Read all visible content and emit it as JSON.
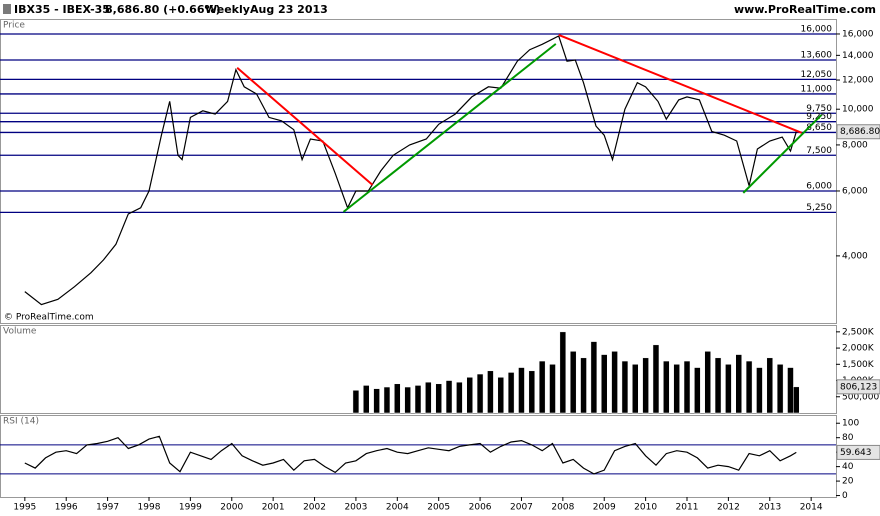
{
  "header": {
    "symbol": "IBX35 - IBEX-35",
    "quote": "8,686.80 (+0.66%)",
    "period": "Weekly",
    "date": "Aug 23 2013",
    "site": "www.ProRealTime.com"
  },
  "chart_data": [
    {
      "type": "line",
      "title": "Price",
      "annotation": "© ProRealTime.com",
      "log_scale": true,
      "color": "#000000",
      "xlim": [
        1994.4,
        2014.6
      ],
      "ylim": [
        2630,
        17460
      ],
      "yticks": [
        {
          "value": 4000,
          "label": "4,000"
        },
        {
          "value": 6000,
          "label": "6,000"
        },
        {
          "value": 8000,
          "label": "8,000"
        },
        {
          "value": 10000,
          "label": "10,000"
        },
        {
          "value": 12000,
          "label": "12,000"
        },
        {
          "value": 14000,
          "label": "14,000"
        },
        {
          "value": 16000,
          "label": "16,000"
        }
      ],
      "x": [
        1995.0,
        1995.4,
        1995.8,
        1996.2,
        1996.6,
        1996.9,
        1997.2,
        1997.5,
        1997.8,
        1998.0,
        1998.3,
        1998.5,
        1998.7,
        1998.8,
        1999.0,
        1999.3,
        1999.6,
        1999.9,
        2000.1,
        2000.3,
        2000.6,
        2000.9,
        2001.2,
        2001.5,
        2001.7,
        2001.9,
        2002.2,
        2002.5,
        2002.8,
        2003.0,
        2003.3,
        2003.6,
        2003.9,
        2004.3,
        2004.7,
        2005.0,
        2005.4,
        2005.8,
        2006.2,
        2006.5,
        2006.9,
        2007.2,
        2007.5,
        2007.9,
        2008.1,
        2008.3,
        2008.5,
        2008.8,
        2009.0,
        2009.2,
        2009.5,
        2009.8,
        2010.0,
        2010.3,
        2010.5,
        2010.8,
        2011.0,
        2011.3,
        2011.6,
        2011.9,
        2012.2,
        2012.5,
        2012.7,
        2013.0,
        2013.3,
        2013.5,
        2013.64
      ],
      "values": [
        3200,
        2950,
        3050,
        3300,
        3600,
        3900,
        4300,
        5200,
        5400,
        6000,
        8500,
        10500,
        7500,
        7300,
        9500,
        9900,
        9700,
        10500,
        12800,
        11500,
        11000,
        9500,
        9300,
        8800,
        7300,
        8300,
        8200,
        6700,
        5400,
        6000,
        6000,
        6800,
        7500,
        8000,
        8300,
        9100,
        9700,
        10800,
        11500,
        11400,
        13500,
        14500,
        15000,
        15800,
        13500,
        13600,
        11800,
        9000,
        8500,
        7300,
        10000,
        11800,
        11500,
        10500,
        9400,
        10600,
        10800,
        10600,
        8700,
        8500,
        8200,
        6200,
        7800,
        8200,
        8400,
        7700,
        8686.8
      ],
      "last_value": {
        "value": 8686.8,
        "label": "8,686.80"
      },
      "levels": [
        {
          "value": 16000,
          "label": "16,000"
        },
        {
          "value": 13600,
          "label": "13,600"
        },
        {
          "value": 12050,
          "label": "12,050"
        },
        {
          "value": 11000,
          "label": "11,000"
        },
        {
          "value": 9750,
          "label": "9,750"
        },
        {
          "value": 9250,
          "label": "9,250"
        },
        {
          "value": 8650,
          "label": "8,650"
        },
        {
          "value": 7500,
          "label": "7,500"
        },
        {
          "value": 6000,
          "label": "6,000"
        },
        {
          "value": 5250,
          "label": "5,250"
        }
      ],
      "level_color": "#000080",
      "trendlines": [
        {
          "color": "#ff0000",
          "x": [
            2000.13,
            2003.4
          ],
          "values": [
            12960,
            6235
          ]
        },
        {
          "color": "#009900",
          "x": [
            2002.7,
            2007.83
          ],
          "values": [
            5266,
            15040
          ]
        },
        {
          "color": "#ff0000",
          "x": [
            2007.9,
            2013.77
          ],
          "values": [
            15900,
            8630
          ]
        },
        {
          "color": "#009900",
          "x": [
            2012.36,
            2014.25
          ],
          "values": [
            5930,
            9650
          ]
        }
      ]
    },
    {
      "type": "bar",
      "title": "Volume",
      "color": "#000000",
      "xlim": [
        1994.4,
        2014.6
      ],
      "ylim": [
        0,
        2680000
      ],
      "yticks": [
        {
          "value": 500000,
          "label": "500,000"
        },
        {
          "value": 1000000,
          "label": "1,000K"
        },
        {
          "value": 1500000,
          "label": "1,500K"
        },
        {
          "value": 2000000,
          "label": "2,000K"
        },
        {
          "value": 2500000,
          "label": "2,500K"
        }
      ],
      "x": [
        2003.0,
        2003.25,
        2003.5,
        2003.75,
        2004.0,
        2004.25,
        2004.5,
        2004.75,
        2005.0,
        2005.25,
        2005.5,
        2005.75,
        2006.0,
        2006.25,
        2006.5,
        2006.75,
        2007.0,
        2007.25,
        2007.5,
        2007.75,
        2008.0,
        2008.25,
        2008.5,
        2008.75,
        2009.0,
        2009.25,
        2009.5,
        2009.75,
        2010.0,
        2010.25,
        2010.5,
        2010.75,
        2011.0,
        2011.25,
        2011.5,
        2011.75,
        2012.0,
        2012.25,
        2012.5,
        2012.75,
        2013.0,
        2013.25,
        2013.5,
        2013.64
      ],
      "values": [
        700000,
        850000,
        750000,
        800000,
        900000,
        800000,
        850000,
        950000,
        900000,
        1000000,
        950000,
        1100000,
        1200000,
        1300000,
        1100000,
        1250000,
        1400000,
        1300000,
        1600000,
        1500000,
        2500000,
        1900000,
        1700000,
        2200000,
        1800000,
        1900000,
        1600000,
        1500000,
        1700000,
        2100000,
        1600000,
        1500000,
        1600000,
        1400000,
        1900000,
        1700000,
        1500000,
        1800000,
        1600000,
        1400000,
        1700000,
        1500000,
        1400000,
        806123
      ],
      "last_value": {
        "value": 806123,
        "label": "806,123"
      }
    },
    {
      "type": "line",
      "title": "RSI (14)",
      "color": "#000000",
      "xlim": [
        1994.4,
        2014.6
      ],
      "ylim": [
        -2,
        110
      ],
      "yticks": [
        0,
        20,
        40,
        60,
        80,
        100
      ],
      "xticks": [
        1995,
        1996,
        1997,
        1998,
        1999,
        2000,
        2001,
        2002,
        2003,
        2004,
        2005,
        2006,
        2007,
        2008,
        2009,
        2010,
        2011,
        2012,
        2013,
        2014
      ],
      "ref_lines": [
        70,
        30
      ],
      "ref_color": "#000080",
      "x": [
        1995.0,
        1995.25,
        1995.5,
        1995.75,
        1996.0,
        1996.25,
        1996.5,
        1996.75,
        1997.0,
        1997.25,
        1997.5,
        1997.75,
        1998.0,
        1998.25,
        1998.5,
        1998.75,
        1999.0,
        1999.25,
        1999.5,
        1999.75,
        2000.0,
        2000.25,
        2000.5,
        2000.75,
        2001.0,
        2001.25,
        2001.5,
        2001.75,
        2002.0,
        2002.25,
        2002.5,
        2002.75,
        2003.0,
        2003.25,
        2003.5,
        2003.75,
        2004.0,
        2004.25,
        2004.5,
        2004.75,
        2005.0,
        2005.25,
        2005.5,
        2005.75,
        2006.0,
        2006.25,
        2006.5,
        2006.75,
        2007.0,
        2007.25,
        2007.5,
        2007.75,
        2008.0,
        2008.25,
        2008.5,
        2008.75,
        2009.0,
        2009.25,
        2009.5,
        2009.75,
        2010.0,
        2010.25,
        2010.5,
        2010.75,
        2011.0,
        2011.25,
        2011.5,
        2011.75,
        2012.0,
        2012.25,
        2012.5,
        2012.75,
        2013.0,
        2013.25,
        2013.5,
        2013.64
      ],
      "values": [
        45,
        38,
        52,
        60,
        62,
        58,
        70,
        72,
        75,
        80,
        65,
        70,
        78,
        82,
        45,
        33,
        60,
        55,
        50,
        62,
        72,
        55,
        48,
        42,
        45,
        50,
        35,
        48,
        50,
        40,
        32,
        45,
        48,
        58,
        62,
        65,
        60,
        58,
        62,
        66,
        64,
        62,
        68,
        70,
        72,
        60,
        68,
        74,
        76,
        70,
        62,
        72,
        45,
        50,
        38,
        30,
        35,
        62,
        68,
        72,
        55,
        42,
        58,
        62,
        60,
        52,
        38,
        42,
        40,
        35,
        58,
        55,
        62,
        48,
        55,
        59.643
      ],
      "last_value": {
        "value": 59.643,
        "label": "59.643"
      }
    }
  ]
}
